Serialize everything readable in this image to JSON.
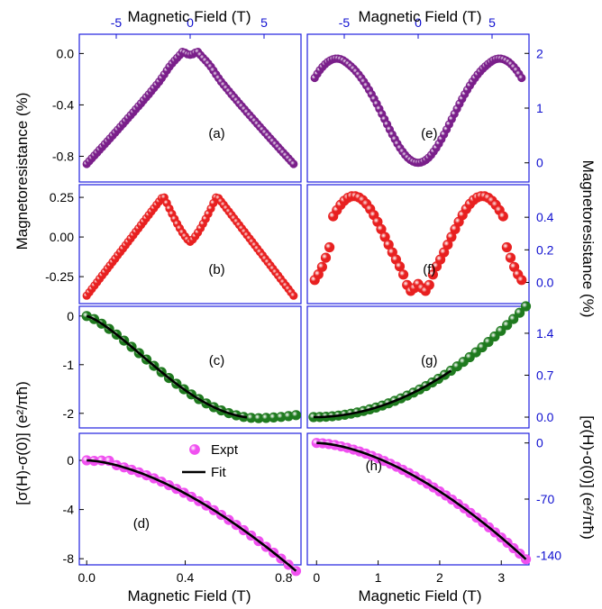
{
  "chart_data": [
    {
      "id": "a",
      "type": "scatter",
      "label": "(a)",
      "series": [
        {
          "marker_color": "#7a1f8a",
          "shape": "mr_a"
        }
      ],
      "xlim": [
        -7.5,
        7.5
      ],
      "ylim": [
        -1.0,
        0.15
      ],
      "top_ticks": [
        "-5",
        "0",
        "5"
      ],
      "y_ticks": [
        "0.0",
        "-0.4",
        "-0.8"
      ],
      "y_tick_values": [
        0.0,
        -0.4,
        -0.8
      ],
      "x_range": [
        -7,
        7
      ],
      "points": 81
    },
    {
      "id": "e",
      "type": "scatter",
      "label": "(e)",
      "series": [
        {
          "marker_color": "#7a1f8a",
          "shape": "mr_e"
        }
      ],
      "xlim": [
        -7.5,
        7.5
      ],
      "ylim": [
        -0.35,
        2.35
      ],
      "top_ticks": [
        "-5",
        "0",
        "5"
      ],
      "y_ticks": [
        "2",
        "1",
        "0"
      ],
      "y_tick_values": [
        2,
        1,
        0
      ],
      "x_range": [
        -7,
        7
      ],
      "points": 81
    },
    {
      "id": "b",
      "type": "scatter",
      "label": "(b)",
      "series": [
        {
          "marker_color": "#e82020",
          "shape": "mr_b"
        }
      ],
      "xlim": [
        -7.5,
        7.5
      ],
      "ylim": [
        -0.42,
        0.33
      ],
      "y_ticks": [
        "0.25",
        "0.00",
        "-0.25"
      ],
      "y_tick_values": [
        0.25,
        0.0,
        -0.25
      ],
      "x_range": [
        -7,
        7
      ],
      "points": 81
    },
    {
      "id": "f",
      "type": "scatter",
      "label": "(f)",
      "series": [
        {
          "marker_color": "#e82020",
          "shape": "mr_f"
        }
      ],
      "xlim": [
        -7.5,
        7.5
      ],
      "ylim": [
        -0.13,
        0.6
      ],
      "y_ticks": [
        "0.4",
        "0.2",
        "0.0"
      ],
      "y_tick_values": [
        0.4,
        0.2,
        0.0
      ],
      "x_range": [
        -7,
        7
      ],
      "points": 57
    },
    {
      "id": "c",
      "type": "scatter",
      "label": "(c)",
      "series": [
        {
          "name": "Expt",
          "marker_color": "#1f7a1f",
          "shape": "cond_c"
        },
        {
          "name": "Fit",
          "line_color": "#000000",
          "fit_to": 0.65
        }
      ],
      "xlim": [
        -0.03,
        0.87
      ],
      "ylim": [
        -2.3,
        0.2
      ],
      "y_ticks": [
        "0",
        "-1",
        "-2"
      ],
      "y_tick_values": [
        0,
        -1,
        -2
      ],
      "x_range": [
        0,
        0.85
      ],
      "points": 29
    },
    {
      "id": "g",
      "type": "scatter",
      "label": "(g)",
      "series": [
        {
          "name": "Expt",
          "marker_color": "#1f7a1f",
          "shape": "cond_g"
        },
        {
          "name": "Fit",
          "line_color": "#000000",
          "fit_to": 2.2
        }
      ],
      "xlim": [
        -0.1,
        3.45
      ],
      "ylim": [
        -0.18,
        1.85
      ],
      "y_ticks": [
        "1.4",
        "0.7",
        "0.0"
      ],
      "y_tick_values": [
        1.4,
        0.7,
        0.0
      ],
      "x_range": [
        0,
        3.4
      ],
      "points": 35
    },
    {
      "id": "d",
      "type": "scatter",
      "label": "(d)",
      "series": [
        {
          "name": "Expt",
          "marker_color": "#f050f0",
          "shape": "cond_d"
        },
        {
          "name": "Fit",
          "line_color": "#000000"
        }
      ],
      "xlim": [
        -0.03,
        0.87
      ],
      "ylim": [
        -8.5,
        2.2
      ],
      "x_ticks": [
        "0.0",
        "0.4",
        "0.8"
      ],
      "x_tick_values": [
        0.0,
        0.4,
        0.8
      ],
      "y_ticks": [
        "0",
        "-4",
        "-8"
      ],
      "y_tick_values": [
        0,
        -4,
        -8
      ],
      "x_range": [
        0,
        0.85
      ],
      "points": 29,
      "legend": {
        "expt": "Expt",
        "fit": "Fit"
      }
    },
    {
      "id": "h",
      "type": "scatter",
      "label": "(h)",
      "series": [
        {
          "name": "Expt",
          "marker_color": "#f050f0",
          "shape": "cond_h"
        },
        {
          "name": "Fit",
          "line_color": "#000000"
        }
      ],
      "xlim": [
        -0.15,
        3.45
      ],
      "ylim": [
        -152,
        12
      ],
      "x_ticks": [
        "0",
        "1",
        "2",
        "3"
      ],
      "x_tick_values": [
        0,
        1,
        2,
        3
      ],
      "y_ticks": [
        "0",
        "-70",
        "-140"
      ],
      "y_tick_values": [
        0,
        -70,
        -140
      ],
      "x_range": [
        0,
        3.4
      ],
      "points": 35
    }
  ],
  "labels": {
    "top_xlabel_left": "Magnetic Field (T)",
    "top_xlabel_right": "Magnetic Field (T)",
    "bottom_xlabel_left": "Magnetic Field (T)",
    "bottom_xlabel_right": "Magnetic Field (T)",
    "left_ylabel_top": "Magnetoresistance (%)",
    "left_ylabel_bottom": "[σ(H)-σ(0)] (e²/πħ)",
    "right_ylabel_top": "Magnetoresistance (%)",
    "right_ylabel_bottom": "[σ(H)-σ(0)] (e²/πħ)"
  },
  "colors": {
    "axis": "#1010d0",
    "frame": "#2020e0",
    "text": "#000000",
    "tick_text_blue": "#1010d0"
  }
}
